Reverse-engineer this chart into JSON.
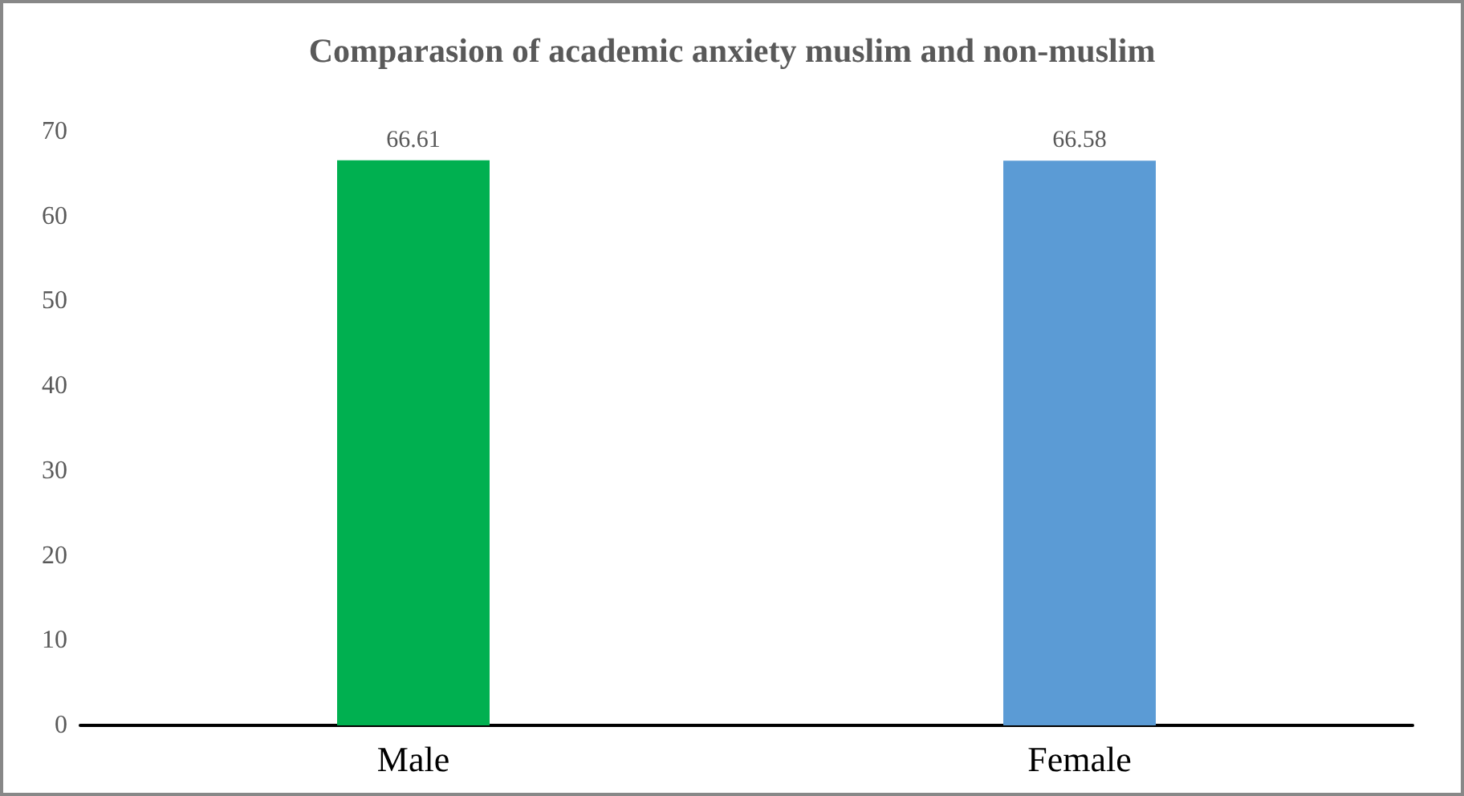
{
  "chart_data": {
    "type": "bar",
    "title": "Comparasion of academic anxiety muslim and non-muslim",
    "categories": [
      "Male",
      "Female"
    ],
    "values": [
      66.61,
      66.58
    ],
    "colors": [
      "#00b050",
      "#5b9bd5"
    ],
    "ylim": [
      0,
      70
    ],
    "yticks": [
      0,
      10,
      20,
      30,
      40,
      50,
      60,
      70
    ],
    "data_labels": true,
    "grid": false
  }
}
